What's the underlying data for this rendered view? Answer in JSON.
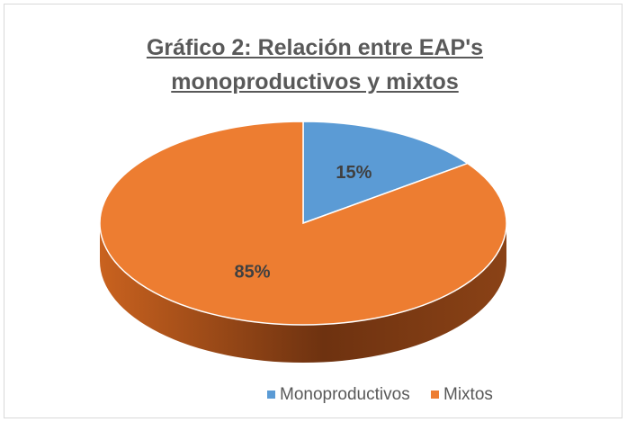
{
  "chart_data": {
    "type": "pie",
    "title": "Gráfico 2: Relación entre EAP's monoproductivos y mixtos",
    "categories": [
      "Monoproductivos",
      "Mixtos"
    ],
    "values": [
      15,
      85
    ],
    "value_labels": [
      "15%",
      "85%"
    ],
    "colors": [
      "#5b9bd5",
      "#ed7d31"
    ],
    "legend": "bottom"
  }
}
